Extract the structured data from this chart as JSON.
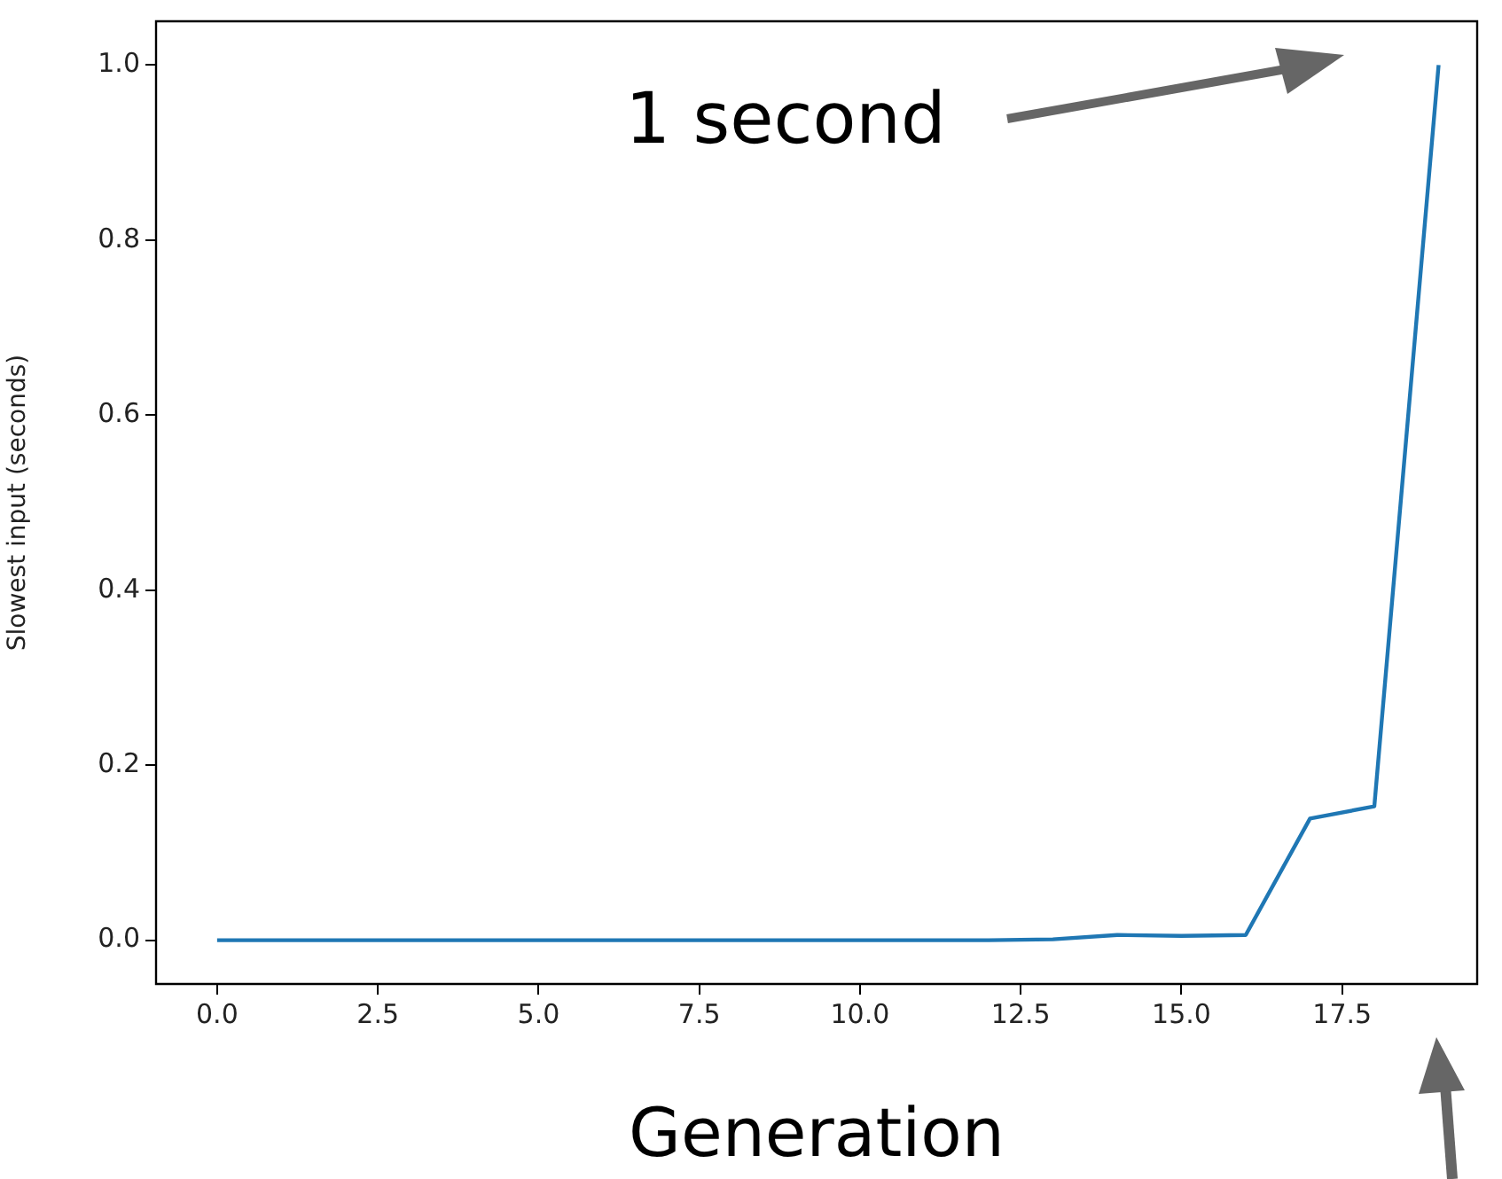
{
  "chart_data": {
    "type": "line",
    "xlabel": "Generation",
    "ylabel": "Slowest input (seconds)",
    "x": [
      0,
      1,
      2,
      3,
      4,
      5,
      6,
      7,
      8,
      9,
      10,
      11,
      12,
      13,
      14,
      15,
      16,
      17,
      18,
      19
    ],
    "series": [
      {
        "color": "#1f77b4",
        "values": [
          0,
          0,
          0,
          0,
          0,
          0,
          0,
          0,
          0,
          0,
          0,
          0,
          0,
          0.001,
          0.006,
          0.005,
          0.006,
          0.139,
          0.153,
          1.0
        ]
      }
    ],
    "xlim": [
      -0.95,
      19.6
    ],
    "xticks": [
      {
        "value": 0,
        "label": "0.0"
      },
      {
        "value": 2.5,
        "label": "2.5"
      },
      {
        "value": 5,
        "label": "5.0"
      },
      {
        "value": 7.5,
        "label": "7.5"
      },
      {
        "value": 10,
        "label": "10.0"
      },
      {
        "value": 12.5,
        "label": "12.5"
      },
      {
        "value": 15,
        "label": "15.0"
      },
      {
        "value": 17.5,
        "label": "17.5"
      }
    ],
    "ylim": [
      -0.05,
      1.05
    ],
    "yticks": [
      {
        "value": 0,
        "label": "0.0"
      },
      {
        "value": 0.2,
        "label": "0.2"
      },
      {
        "value": 0.4,
        "label": "0.4"
      },
      {
        "value": 0.6,
        "label": "0.6"
      },
      {
        "value": 0.8,
        "label": "0.8"
      },
      {
        "value": 1,
        "label": "1.0"
      }
    ],
    "grid": false,
    "legend": false,
    "marker": "none",
    "line_style": "solid",
    "annotations": [
      "1 second"
    ]
  }
}
